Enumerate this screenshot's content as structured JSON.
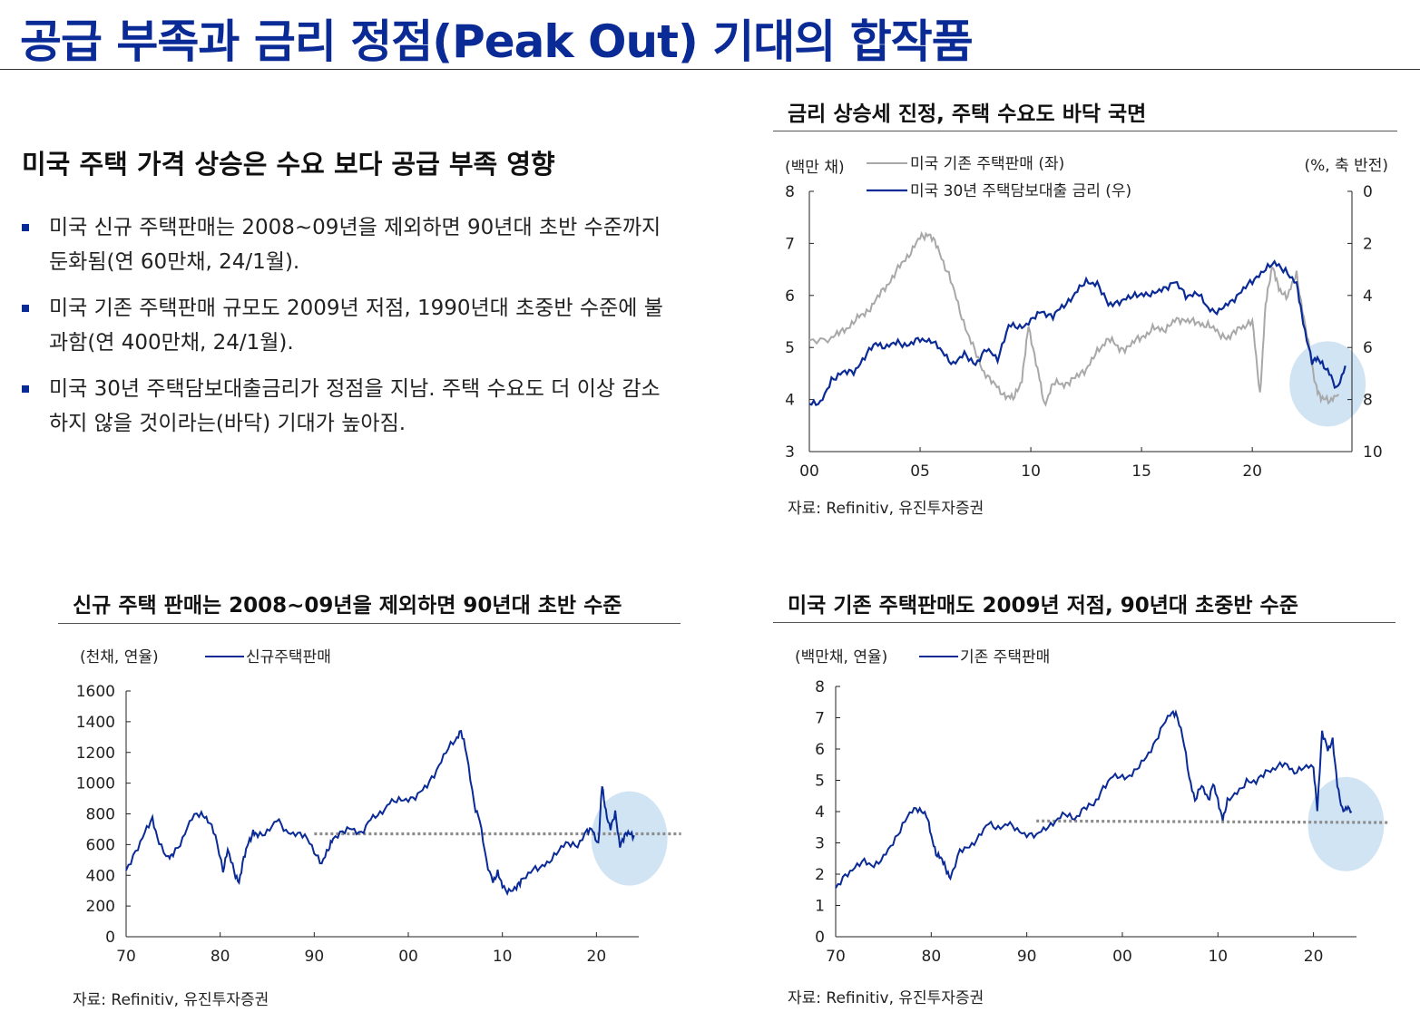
{
  "page": {
    "title": "공급 부족과 금리 정점(Peak Out) 기대의 합작품",
    "subheading": "미국 주택 가격 상승은 수요 보다 공급 부족 영향",
    "bullets": [
      "미국 신규 주택판매는 2008~09년을 제외하면 90년대 초반 수준까지 둔화됨(연 60만채, 24/1월).",
      "미국 기존 주택판매 규모도 2009년 저점, 1990년대 초중반 수준에 불과함(연 400만채, 24/1월).",
      "미국 30년 주택담보대출금리가 정점을 지남. 주택 수요도 더 이상 감소하지 않을 것이라는(바닥) 기대가 높아짐."
    ]
  },
  "colors": {
    "title": "#0a2a96",
    "navy_series": "#0a2a96",
    "gray_series": "#a8a8a8",
    "dotted_line": "#8c8c8c",
    "highlight": "#c9dff2"
  },
  "chart_data": [
    {
      "id": "rates",
      "type": "line",
      "title": "금리 상승세 진정, 주택 수요도 바닥 국면",
      "source": "자료: Refinitiv, 유진투자증권",
      "left_unit": "(백만 채)",
      "right_unit": "(%, 축 반전)",
      "xlim": [
        2000,
        2024.5
      ],
      "x_ticks": [
        {
          "v": 2000,
          "label": "00"
        },
        {
          "v": 2005,
          "label": "05"
        },
        {
          "v": 2010,
          "label": "10"
        },
        {
          "v": 2015,
          "label": "15"
        },
        {
          "v": 2020,
          "label": "20"
        }
      ],
      "ylim_left": [
        3,
        8
      ],
      "y_ticks_left": [
        "3",
        "4",
        "5",
        "6",
        "7",
        "8"
      ],
      "ylim_right": [
        0,
        10
      ],
      "right_axis_inverted": true,
      "y_ticks_right": [
        "0",
        "2",
        "4",
        "6",
        "8",
        "10"
      ],
      "highlight": {
        "x": 2023.4,
        "y": 4.3,
        "note": "최근 구간 강조"
      },
      "series": [
        {
          "name": "미국 기존 주택판매 (좌)",
          "axis": "left",
          "color": "#a8a8a8",
          "x": [
            2000,
            2001,
            2001.5,
            2002,
            2002.5,
            2003,
            2003.5,
            2004,
            2004.5,
            2005,
            2005.4,
            2005.8,
            2006.3,
            2006.8,
            2007.3,
            2007.8,
            2008.3,
            2008.8,
            2009.2,
            2009.6,
            2009.9,
            2010.3,
            2010.6,
            2011,
            2011.5,
            2012,
            2012.5,
            2013,
            2013.5,
            2014,
            2014.5,
            2015,
            2015.5,
            2016,
            2016.5,
            2017,
            2017.5,
            2018,
            2018.5,
            2019,
            2019.5,
            2020,
            2020.35,
            2020.6,
            2020.9,
            2021.2,
            2021.6,
            2022,
            2022.4,
            2022.8,
            2023.1,
            2023.5,
            2023.9
          ],
          "y": [
            5.1,
            5.2,
            5.3,
            5.5,
            5.65,
            5.9,
            6.2,
            6.5,
            6.8,
            7.1,
            7.2,
            6.9,
            6.4,
            5.7,
            5.1,
            4.6,
            4.3,
            4.1,
            4.0,
            4.4,
            5.4,
            4.6,
            3.9,
            4.3,
            4.3,
            4.4,
            4.6,
            4.9,
            5.2,
            4.95,
            5.05,
            5.2,
            5.35,
            5.35,
            5.5,
            5.55,
            5.45,
            5.45,
            5.25,
            5.2,
            5.4,
            5.5,
            4.1,
            5.8,
            6.6,
            6.1,
            6.0,
            6.4,
            5.4,
            4.4,
            4.0,
            4.0,
            4.1
          ]
        },
        {
          "name": "미국 30년 주택담보대출 금리 (우)",
          "axis": "right",
          "color": "#0a2a96",
          "x": [
            2000,
            2000.5,
            2001,
            2001.5,
            2002,
            2002.5,
            2003,
            2003.5,
            2004,
            2004.5,
            2005,
            2005.5,
            2006,
            2006.5,
            2007,
            2007.5,
            2008,
            2008.5,
            2009,
            2009.5,
            2010,
            2010.5,
            2011,
            2011.5,
            2012,
            2012.5,
            2013,
            2013.5,
            2014,
            2014.5,
            2015,
            2015.5,
            2016,
            2016.5,
            2017,
            2017.5,
            2018,
            2018.5,
            2019,
            2019.5,
            2020,
            2020.5,
            2021,
            2021.5,
            2022,
            2022.3,
            2022.7,
            2023,
            2023.4,
            2023.8,
            2024.2
          ],
          "y": [
            8.1,
            8.2,
            7.2,
            7.0,
            6.9,
            6.4,
            5.8,
            6.0,
            5.8,
            5.9,
            5.7,
            5.7,
            6.2,
            6.6,
            6.3,
            6.6,
            6.1,
            6.4,
            5.2,
            5.2,
            5.0,
            4.6,
            4.8,
            4.4,
            3.9,
            3.5,
            3.5,
            4.4,
            4.2,
            4.1,
            3.9,
            4.0,
            3.7,
            3.5,
            4.0,
            3.9,
            4.5,
            4.6,
            4.3,
            3.8,
            3.5,
            3.0,
            2.8,
            3.0,
            3.6,
            5.0,
            6.6,
            6.4,
            6.9,
            7.6,
            6.7
          ]
        }
      ]
    },
    {
      "id": "new_home",
      "type": "line",
      "title": "신규 주택 판매는 2008~09년을 제외하면 90년대 초반 수준",
      "source": "자료: Refinitiv, 유진투자증권",
      "left_unit": "(천채, 연율)",
      "xlim": [
        1970,
        2024.5
      ],
      "x_ticks": [
        {
          "v": 1970,
          "label": "70"
        },
        {
          "v": 1980,
          "label": "80"
        },
        {
          "v": 1990,
          "label": "90"
        },
        {
          "v": 2000,
          "label": "00"
        },
        {
          "v": 2010,
          "label": "10"
        },
        {
          "v": 2020,
          "label": "20"
        }
      ],
      "ylim": [
        0,
        1600
      ],
      "y_ticks": [
        "0",
        "200",
        "400",
        "600",
        "800",
        "1000",
        "1200",
        "1400",
        "1600"
      ],
      "reference_line": {
        "value": 670,
        "from_x": 1990,
        "to_x": 2029
      },
      "highlight": {
        "x": 2023.5,
        "y": 640
      },
      "series": [
        {
          "name": "신규주택판매",
          "color": "#0a2a96",
          "x": [
            1970,
            1971,
            1972,
            1972.8,
            1973.5,
            1974.5,
            1975,
            1976,
            1977,
            1978,
            1978.7,
            1979.5,
            1980.3,
            1980.8,
            1981.5,
            1982,
            1982.5,
            1983,
            1983.5,
            1984,
            1985,
            1986,
            1987,
            1988,
            1989,
            1990,
            1990.8,
            1991.5,
            1992,
            1993,
            1994,
            1995,
            1996,
            1997,
            1998,
            1999,
            2000,
            2001,
            2002,
            2003,
            2004,
            2005,
            2005.6,
            2006.2,
            2007,
            2007.6,
            2008.3,
            2009,
            2009.5,
            2010,
            2010.7,
            2011.5,
            2012,
            2013,
            2014,
            2015,
            2016,
            2017,
            2018,
            2019,
            2019.6,
            2020.2,
            2020.6,
            2021,
            2021.5,
            2022,
            2022.5,
            2023,
            2023.5,
            2024
          ],
          "y": [
            420,
            560,
            680,
            760,
            620,
            500,
            540,
            640,
            770,
            810,
            760,
            650,
            440,
            560,
            420,
            360,
            500,
            620,
            680,
            650,
            690,
            760,
            680,
            680,
            650,
            560,
            480,
            560,
            650,
            680,
            700,
            680,
            760,
            800,
            880,
            880,
            900,
            920,
            980,
            1090,
            1200,
            1280,
            1350,
            1180,
            870,
            760,
            480,
            370,
            410,
            330,
            300,
            310,
            370,
            430,
            440,
            500,
            560,
            610,
            600,
            680,
            700,
            600,
            980,
            820,
            700,
            800,
            600,
            650,
            680,
            660
          ]
        }
      ]
    },
    {
      "id": "existing_home",
      "type": "line",
      "title": "미국 기존 주택판매도 2009년 저점, 90년대 초중반 수준",
      "source": "자료: Refinitiv, 유진투자증권",
      "left_unit": "(백만채, 연율)",
      "xlim": [
        1970,
        2024.5
      ],
      "x_ticks": [
        {
          "v": 1970,
          "label": "70"
        },
        {
          "v": 1980,
          "label": "80"
        },
        {
          "v": 1990,
          "label": "90"
        },
        {
          "v": 2000,
          "label": "00"
        },
        {
          "v": 2010,
          "label": "10"
        },
        {
          "v": 2020,
          "label": "20"
        }
      ],
      "ylim": [
        0,
        8
      ],
      "y_ticks": [
        "0",
        "1",
        "2",
        "3",
        "4",
        "5",
        "6",
        "7",
        "8"
      ],
      "reference_line": {
        "value": 3.7,
        "start_value": 3.7,
        "end_value": 3.65,
        "from_x": 1991,
        "to_x": 2028
      },
      "highlight": {
        "x": 2023.4,
        "y": 3.6
      },
      "series": [
        {
          "name": "기존 주택판매",
          "color": "#0a2a96",
          "x": [
            1970,
            1971,
            1972,
            1973,
            1974,
            1975,
            1976,
            1977,
            1978,
            1978.8,
            1979.5,
            1980,
            1980.5,
            1981,
            1981.5,
            1982,
            1983,
            1984,
            1985,
            1986,
            1987,
            1988,
            1989,
            1990,
            1991,
            1992,
            1993,
            1994,
            1995,
            1996,
            1997,
            1998,
            1999,
            2000,
            2001,
            2002,
            2003,
            2004,
            2005,
            2005.6,
            2006.3,
            2007,
            2007.6,
            2008.3,
            2009,
            2009.5,
            2010,
            2010.5,
            2011,
            2012,
            2013,
            2014,
            2015,
            2016,
            2017,
            2018,
            2019,
            2020,
            2020.4,
            2020.9,
            2021.5,
            2022,
            2022.5,
            2023,
            2023.5,
            2024
          ],
          "y": [
            1.5,
            2.0,
            2.2,
            2.4,
            2.3,
            2.5,
            3.0,
            3.6,
            4.0,
            4.1,
            3.9,
            3.2,
            2.7,
            2.5,
            2.2,
            1.9,
            2.7,
            2.9,
            3.2,
            3.6,
            3.5,
            3.6,
            3.4,
            3.3,
            3.2,
            3.5,
            3.7,
            3.9,
            3.8,
            4.1,
            4.2,
            4.8,
            5.1,
            5.1,
            5.2,
            5.5,
            6.0,
            6.6,
            7.1,
            7.2,
            6.4,
            5.1,
            4.4,
            4.8,
            4.4,
            4.9,
            4.3,
            3.8,
            4.3,
            4.6,
            5.0,
            4.9,
            5.3,
            5.4,
            5.5,
            5.3,
            5.4,
            5.4,
            4.1,
            6.5,
            6.0,
            6.3,
            4.8,
            4.1,
            4.1,
            4.0
          ]
        }
      ]
    }
  ]
}
